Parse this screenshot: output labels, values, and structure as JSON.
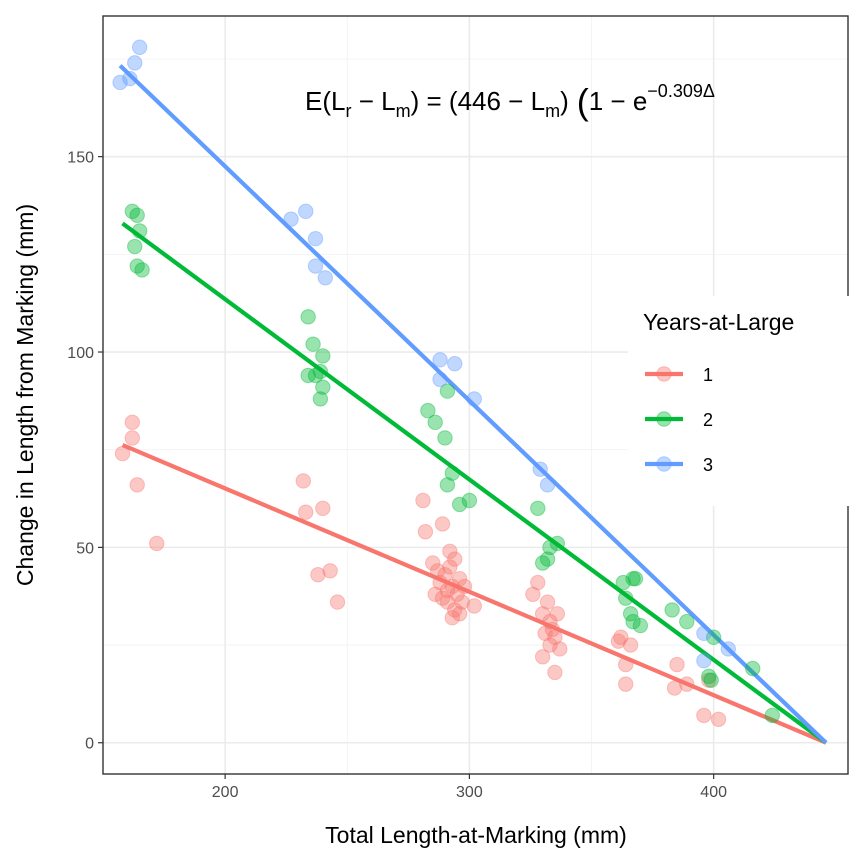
{
  "chart_data": {
    "type": "scatter",
    "xlabel": "Total Length-at-Marking (mm)",
    "ylabel": "Change in Length from Marking (mm)",
    "xlim": [
      150,
      455
    ],
    "ylim": [
      -8,
      186
    ],
    "x_ticks": [
      200,
      300,
      400
    ],
    "y_ticks": [
      0,
      50,
      100,
      150
    ],
    "x_minor_ticks": [
      250,
      350
    ],
    "y_minor_ticks": [
      25,
      75,
      125,
      175
    ],
    "grid": true,
    "legend": {
      "title": "Years-at-Large",
      "position": "right",
      "entries": [
        "1",
        "2",
        "3"
      ]
    },
    "annotation": {
      "lead": "E",
      "lhs_a": "L",
      "lhs_a_sub": "r",
      "minus": " − ",
      "lhs_b": "L",
      "lhs_b_sub": "m",
      "equals": " = ",
      "rhs_num": "446 − ",
      "rhs_l": "L",
      "rhs_l_sub": "m",
      "one_minus_e": "1 − e",
      "exponent": "−0.309Δ",
      "open_paren": "(",
      "close_paren": ")",
      "big_paren": "("
    },
    "series": [
      {
        "name": "1",
        "color": "#F8766D",
        "line": {
          "x": [
            158,
            446
          ],
          "y": [
            76.2,
            0
          ]
        },
        "points": [
          [
            158,
            74
          ],
          [
            162,
            82
          ],
          [
            162,
            78
          ],
          [
            164,
            66
          ],
          [
            172,
            51
          ],
          [
            232,
            67
          ],
          [
            233,
            59
          ],
          [
            238,
            43
          ],
          [
            240,
            60
          ],
          [
            243,
            44
          ],
          [
            246,
            36
          ],
          [
            281,
            62
          ],
          [
            282,
            54
          ],
          [
            285,
            46
          ],
          [
            286,
            38
          ],
          [
            287,
            44
          ],
          [
            288,
            41
          ],
          [
            289,
            37
          ],
          [
            289,
            56
          ],
          [
            290,
            43
          ],
          [
            291,
            39
          ],
          [
            291,
            36
          ],
          [
            292,
            49
          ],
          [
            292,
            45
          ],
          [
            293,
            32
          ],
          [
            293,
            40
          ],
          [
            294,
            34
          ],
          [
            294,
            47
          ],
          [
            295,
            38
          ],
          [
            296,
            42
          ],
          [
            296,
            33
          ],
          [
            297,
            36
          ],
          [
            298,
            40
          ],
          [
            302,
            35
          ],
          [
            326,
            38
          ],
          [
            328,
            41
          ],
          [
            330,
            33
          ],
          [
            330,
            22
          ],
          [
            331,
            28
          ],
          [
            332,
            36
          ],
          [
            333,
            31
          ],
          [
            333,
            25
          ],
          [
            334,
            29
          ],
          [
            335,
            27
          ],
          [
            335,
            18
          ],
          [
            336,
            33
          ],
          [
            337,
            24
          ],
          [
            361,
            26
          ],
          [
            362,
            27
          ],
          [
            364,
            20
          ],
          [
            364,
            15
          ],
          [
            366,
            25
          ],
          [
            384,
            14
          ],
          [
            385,
            20
          ],
          [
            389,
            15
          ],
          [
            396,
            7
          ],
          [
            398,
            16
          ],
          [
            402,
            6
          ]
        ]
      },
      {
        "name": "2",
        "color": "#00BA38",
        "line": {
          "x": [
            158,
            446
          ],
          "y": [
            132.9,
            0
          ]
        },
        "points": [
          [
            162,
            136
          ],
          [
            163,
            127
          ],
          [
            164,
            135
          ],
          [
            164,
            122
          ],
          [
            165,
            131
          ],
          [
            166,
            121
          ],
          [
            234,
            109
          ],
          [
            234,
            94
          ],
          [
            236,
            102
          ],
          [
            237,
            94
          ],
          [
            239,
            95
          ],
          [
            239,
            88
          ],
          [
            240,
            99
          ],
          [
            240,
            91
          ],
          [
            283,
            85
          ],
          [
            286,
            82
          ],
          [
            290,
            78
          ],
          [
            291,
            66
          ],
          [
            291,
            90
          ],
          [
            293,
            69
          ],
          [
            296,
            61
          ],
          [
            300,
            62
          ],
          [
            328,
            60
          ],
          [
            330,
            46
          ],
          [
            332,
            47
          ],
          [
            333,
            50
          ],
          [
            336,
            51
          ],
          [
            363,
            41
          ],
          [
            364,
            37
          ],
          [
            366,
            33
          ],
          [
            367,
            42
          ],
          [
            367,
            31
          ],
          [
            368,
            42
          ],
          [
            370,
            30
          ],
          [
            383,
            34
          ],
          [
            389,
            31
          ],
          [
            398,
            17
          ],
          [
            399,
            16
          ],
          [
            400,
            27
          ],
          [
            416,
            19
          ],
          [
            424,
            7
          ]
        ]
      },
      {
        "name": "3",
        "color": "#619CFF",
        "line": {
          "x": [
            157,
            446
          ],
          "y": [
            173.3,
            0
          ]
        },
        "points": [
          [
            157,
            169
          ],
          [
            161,
            170
          ],
          [
            163,
            174
          ],
          [
            165,
            178
          ],
          [
            227,
            134
          ],
          [
            233,
            136
          ],
          [
            237,
            129
          ],
          [
            237,
            122
          ],
          [
            241,
            119
          ],
          [
            288,
            93
          ],
          [
            288,
            98
          ],
          [
            294,
            97
          ],
          [
            302,
            88
          ],
          [
            329,
            70
          ],
          [
            332,
            66
          ],
          [
            396,
            28
          ],
          [
            396,
            21
          ],
          [
            406,
            24
          ]
        ]
      }
    ]
  }
}
